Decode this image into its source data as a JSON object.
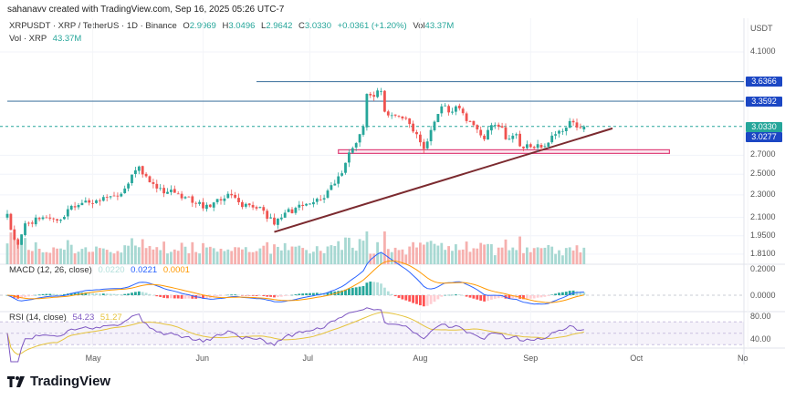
{
  "attribution": "sahanavv created with TradingView.com, Sep 16, 2025 05:26 UTC-7",
  "symbol": {
    "title": "XRPUSDT · XRP / TetherUS · 1D · Binance",
    "o_label": "O",
    "open": "2.9969",
    "h_label": "H",
    "high": "3.0496",
    "l_label": "L",
    "low": "2.9642",
    "c_label": "C",
    "close": "3.0330",
    "change": "+0.0361 (+1.20%)",
    "vol_label": "Vol",
    "vol": "43.37M"
  },
  "volume_legend": {
    "label": "Vol · XRP",
    "value": "43.37M"
  },
  "price_axis": {
    "currency": "USDT",
    "scale": "log",
    "ticks": [
      "4.1000",
      "2.7000",
      "2.5000",
      "2.3000",
      "2.1000",
      "1.9500",
      "1.8100"
    ]
  },
  "price_tags": [
    {
      "value": "3.6366",
      "color": "#1c47c4"
    },
    {
      "value": "3.3592",
      "color": "#1c47c4"
    },
    {
      "value": "3.0330",
      "color": "#26a69a"
    },
    {
      "value": "3.0277",
      "color": "#1c47c4"
    }
  ],
  "macd": {
    "label": "MACD (12, 26, close)",
    "histogram": "0.0220",
    "macd": "0.0221",
    "signal": "0.0001",
    "ticks": [
      "0.2000",
      "0.0000"
    ]
  },
  "rsi": {
    "label": "RSI (14, close)",
    "value": "54.23",
    "ma": "51.27",
    "ticks": [
      "80.00",
      "40.00"
    ]
  },
  "time_axis": [
    "May",
    "Jun",
    "Jul",
    "Aug",
    "Sep",
    "Oct",
    "No"
  ],
  "logo": "TradingView",
  "colors": {
    "up": "#26a69a",
    "down": "#ef5350",
    "macd": "#2962ff",
    "signal": "#ff9800",
    "rsi": "#7e57c2",
    "rsi_ma": "#e5c33c",
    "zone": "#e0457b",
    "trendline": "#7b2a2f",
    "level": "#4f7fa6"
  },
  "chart_data": {
    "type": "candlestick",
    "symbol": "XRPUSDT",
    "interval": "1D",
    "yscale": "log",
    "ylim": [
      1.78,
      4.15
    ],
    "key_closes": [
      [
        "2025-04-07",
        2.13
      ],
      [
        "2025-04-09",
        1.92
      ],
      [
        "2025-04-10",
        1.88
      ],
      [
        "2025-04-12",
        2.05
      ],
      [
        "2025-04-17",
        2.1
      ],
      [
        "2025-04-22",
        2.08
      ],
      [
        "2025-04-25",
        2.2
      ],
      [
        "2025-05-02",
        2.25
      ],
      [
        "2025-05-09",
        2.31
      ],
      [
        "2025-05-10",
        2.36
      ],
      [
        "2025-05-13",
        2.54
      ],
      [
        "2025-05-14",
        2.58
      ],
      [
        "2025-05-16",
        2.48
      ],
      [
        "2025-05-19",
        2.36
      ],
      [
        "2025-05-25",
        2.31
      ],
      [
        "2025-05-30",
        2.22
      ],
      [
        "2025-06-03",
        2.19
      ],
      [
        "2025-06-08",
        2.31
      ],
      [
        "2025-06-12",
        2.19
      ],
      [
        "2025-06-17",
        2.19
      ],
      [
        "2025-06-21",
        2.04
      ],
      [
        "2025-06-24",
        2.14
      ],
      [
        "2025-07-01",
        2.22
      ],
      [
        "2025-07-05",
        2.27
      ],
      [
        "2025-07-10",
        2.51
      ],
      [
        "2025-07-12",
        2.73
      ],
      [
        "2025-07-15",
        2.94
      ],
      [
        "2025-07-16",
        3.03
      ],
      [
        "2025-07-17",
        3.46
      ],
      [
        "2025-07-18",
        3.44
      ],
      [
        "2025-07-21",
        3.5
      ],
      [
        "2025-07-22",
        3.22
      ],
      [
        "2025-07-25",
        3.17
      ],
      [
        "2025-07-28",
        3.13
      ],
      [
        "2025-07-31",
        2.94
      ],
      [
        "2025-08-02",
        2.77
      ],
      [
        "2025-08-04",
        2.99
      ],
      [
        "2025-08-07",
        3.29
      ],
      [
        "2025-08-10",
        3.22
      ],
      [
        "2025-08-11",
        3.29
      ],
      [
        "2025-08-14",
        3.1
      ],
      [
        "2025-08-16",
        3.05
      ],
      [
        "2025-08-19",
        2.88
      ],
      [
        "2025-08-21",
        3.05
      ],
      [
        "2025-08-24",
        3.02
      ],
      [
        "2025-08-25",
        2.88
      ],
      [
        "2025-08-28",
        2.94
      ],
      [
        "2025-08-29",
        2.8
      ],
      [
        "2025-09-02",
        2.78
      ],
      [
        "2025-09-06",
        2.84
      ],
      [
        "2025-09-08",
        2.94
      ],
      [
        "2025-09-11",
        3.02
      ],
      [
        "2025-09-12",
        3.1
      ],
      [
        "2025-09-14",
        3.02
      ],
      [
        "2025-09-16",
        3.033
      ]
    ],
    "last_candle": {
      "open": 2.9969,
      "high": 3.0496,
      "low": 2.9642,
      "close": 3.033
    },
    "horizontal_levels": [
      {
        "price": 3.6366,
        "from": "2025-06-16"
      },
      {
        "price": 3.3592,
        "from": "2025-04-07"
      }
    ],
    "support_zone": {
      "from": "2025-07-09",
      "to": "2025-10-10",
      "low": 2.72,
      "high": 2.76
    },
    "trendline": {
      "start": [
        "2025-06-21",
        1.98
      ],
      "end": [
        "2025-09-24",
        3.01
      ]
    },
    "current_price_line": 3.033
  }
}
